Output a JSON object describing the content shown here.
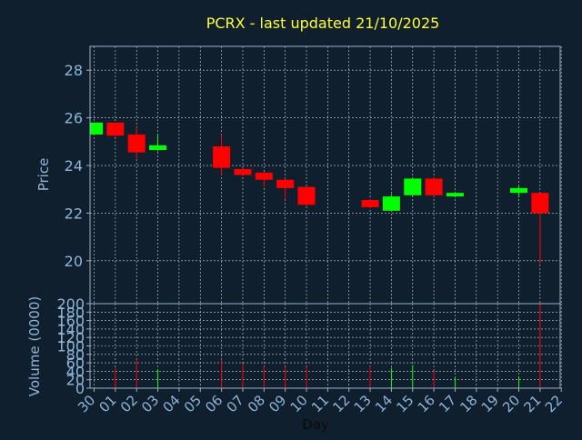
{
  "colors": {
    "background": "#0f1f2e",
    "title": "#ffff33",
    "axis_text": "#8fb4d6",
    "xlabel_text": "#0b0b0b",
    "up": "#00ff00",
    "down": "#ff0000",
    "grid": "#c8d4e0",
    "frame": "#9db0c8"
  },
  "chart_data": {
    "type": "candlestick",
    "title": "PCRX - last updated 21/10/2025",
    "xlabel": "Day",
    "price_panel": {
      "ylabel": "Price",
      "ylim": [
        18.2,
        29.0
      ],
      "yticks": [
        20,
        22,
        24,
        26,
        28
      ],
      "grid": true
    },
    "volume_panel": {
      "ylabel": "Volume (0000)",
      "ylim": [
        0,
        200
      ],
      "yticks": [
        0,
        20,
        40,
        60,
        80,
        100,
        120,
        140,
        160,
        180,
        200
      ],
      "grid": true
    },
    "x_ticks": [
      "30",
      "01",
      "02",
      "03",
      "04",
      "05",
      "06",
      "07",
      "08",
      "09",
      "10",
      "11",
      "12",
      "13",
      "14",
      "15",
      "16",
      "17",
      "18",
      "19",
      "20",
      "21",
      "22"
    ],
    "candles": [
      {
        "day": "30",
        "open": 25.3,
        "high": 25.8,
        "low": 25.3,
        "close": 25.8,
        "volume": 0
      },
      {
        "day": "01",
        "open": 25.8,
        "high": 25.8,
        "low": 25.2,
        "close": 25.25,
        "volume": 48
      },
      {
        "day": "02",
        "open": 25.3,
        "high": 25.6,
        "low": 24.3,
        "close": 24.55,
        "volume": 68
      },
      {
        "day": "03",
        "open": 24.65,
        "high": 25.3,
        "low": 24.6,
        "close": 24.85,
        "volume": 45
      },
      {
        "day": "06",
        "open": 24.8,
        "high": 25.3,
        "low": 23.6,
        "close": 23.9,
        "volume": 68
      },
      {
        "day": "07",
        "open": 23.85,
        "high": 23.9,
        "low": 23.55,
        "close": 23.6,
        "volume": 58
      },
      {
        "day": "08",
        "open": 23.7,
        "high": 23.75,
        "low": 23.1,
        "close": 23.4,
        "volume": 52
      },
      {
        "day": "09",
        "open": 23.4,
        "high": 23.45,
        "low": 22.6,
        "close": 23.05,
        "volume": 50
      },
      {
        "day": "10",
        "open": 23.1,
        "high": 23.1,
        "low": 22.3,
        "close": 22.35,
        "volume": 50
      },
      {
        "day": "13",
        "open": 22.55,
        "high": 22.6,
        "low": 22.2,
        "close": 22.25,
        "volume": 52
      },
      {
        "day": "14",
        "open": 22.1,
        "high": 22.8,
        "low": 22.1,
        "close": 22.7,
        "volume": 48
      },
      {
        "day": "15",
        "open": 22.75,
        "high": 23.5,
        "low": 22.75,
        "close": 23.45,
        "volume": 55
      },
      {
        "day": "16",
        "open": 23.45,
        "high": 23.5,
        "low": 22.7,
        "close": 22.75,
        "volume": 42
      },
      {
        "day": "17",
        "open": 22.7,
        "high": 22.9,
        "low": 22.65,
        "close": 22.85,
        "volume": 25
      },
      {
        "day": "20",
        "open": 22.85,
        "high": 23.15,
        "low": 22.65,
        "close": 23.05,
        "volume": 28
      },
      {
        "day": "21",
        "open": 22.85,
        "high": 22.85,
        "low": 19.85,
        "close": 22.0,
        "volume": 200
      }
    ]
  }
}
